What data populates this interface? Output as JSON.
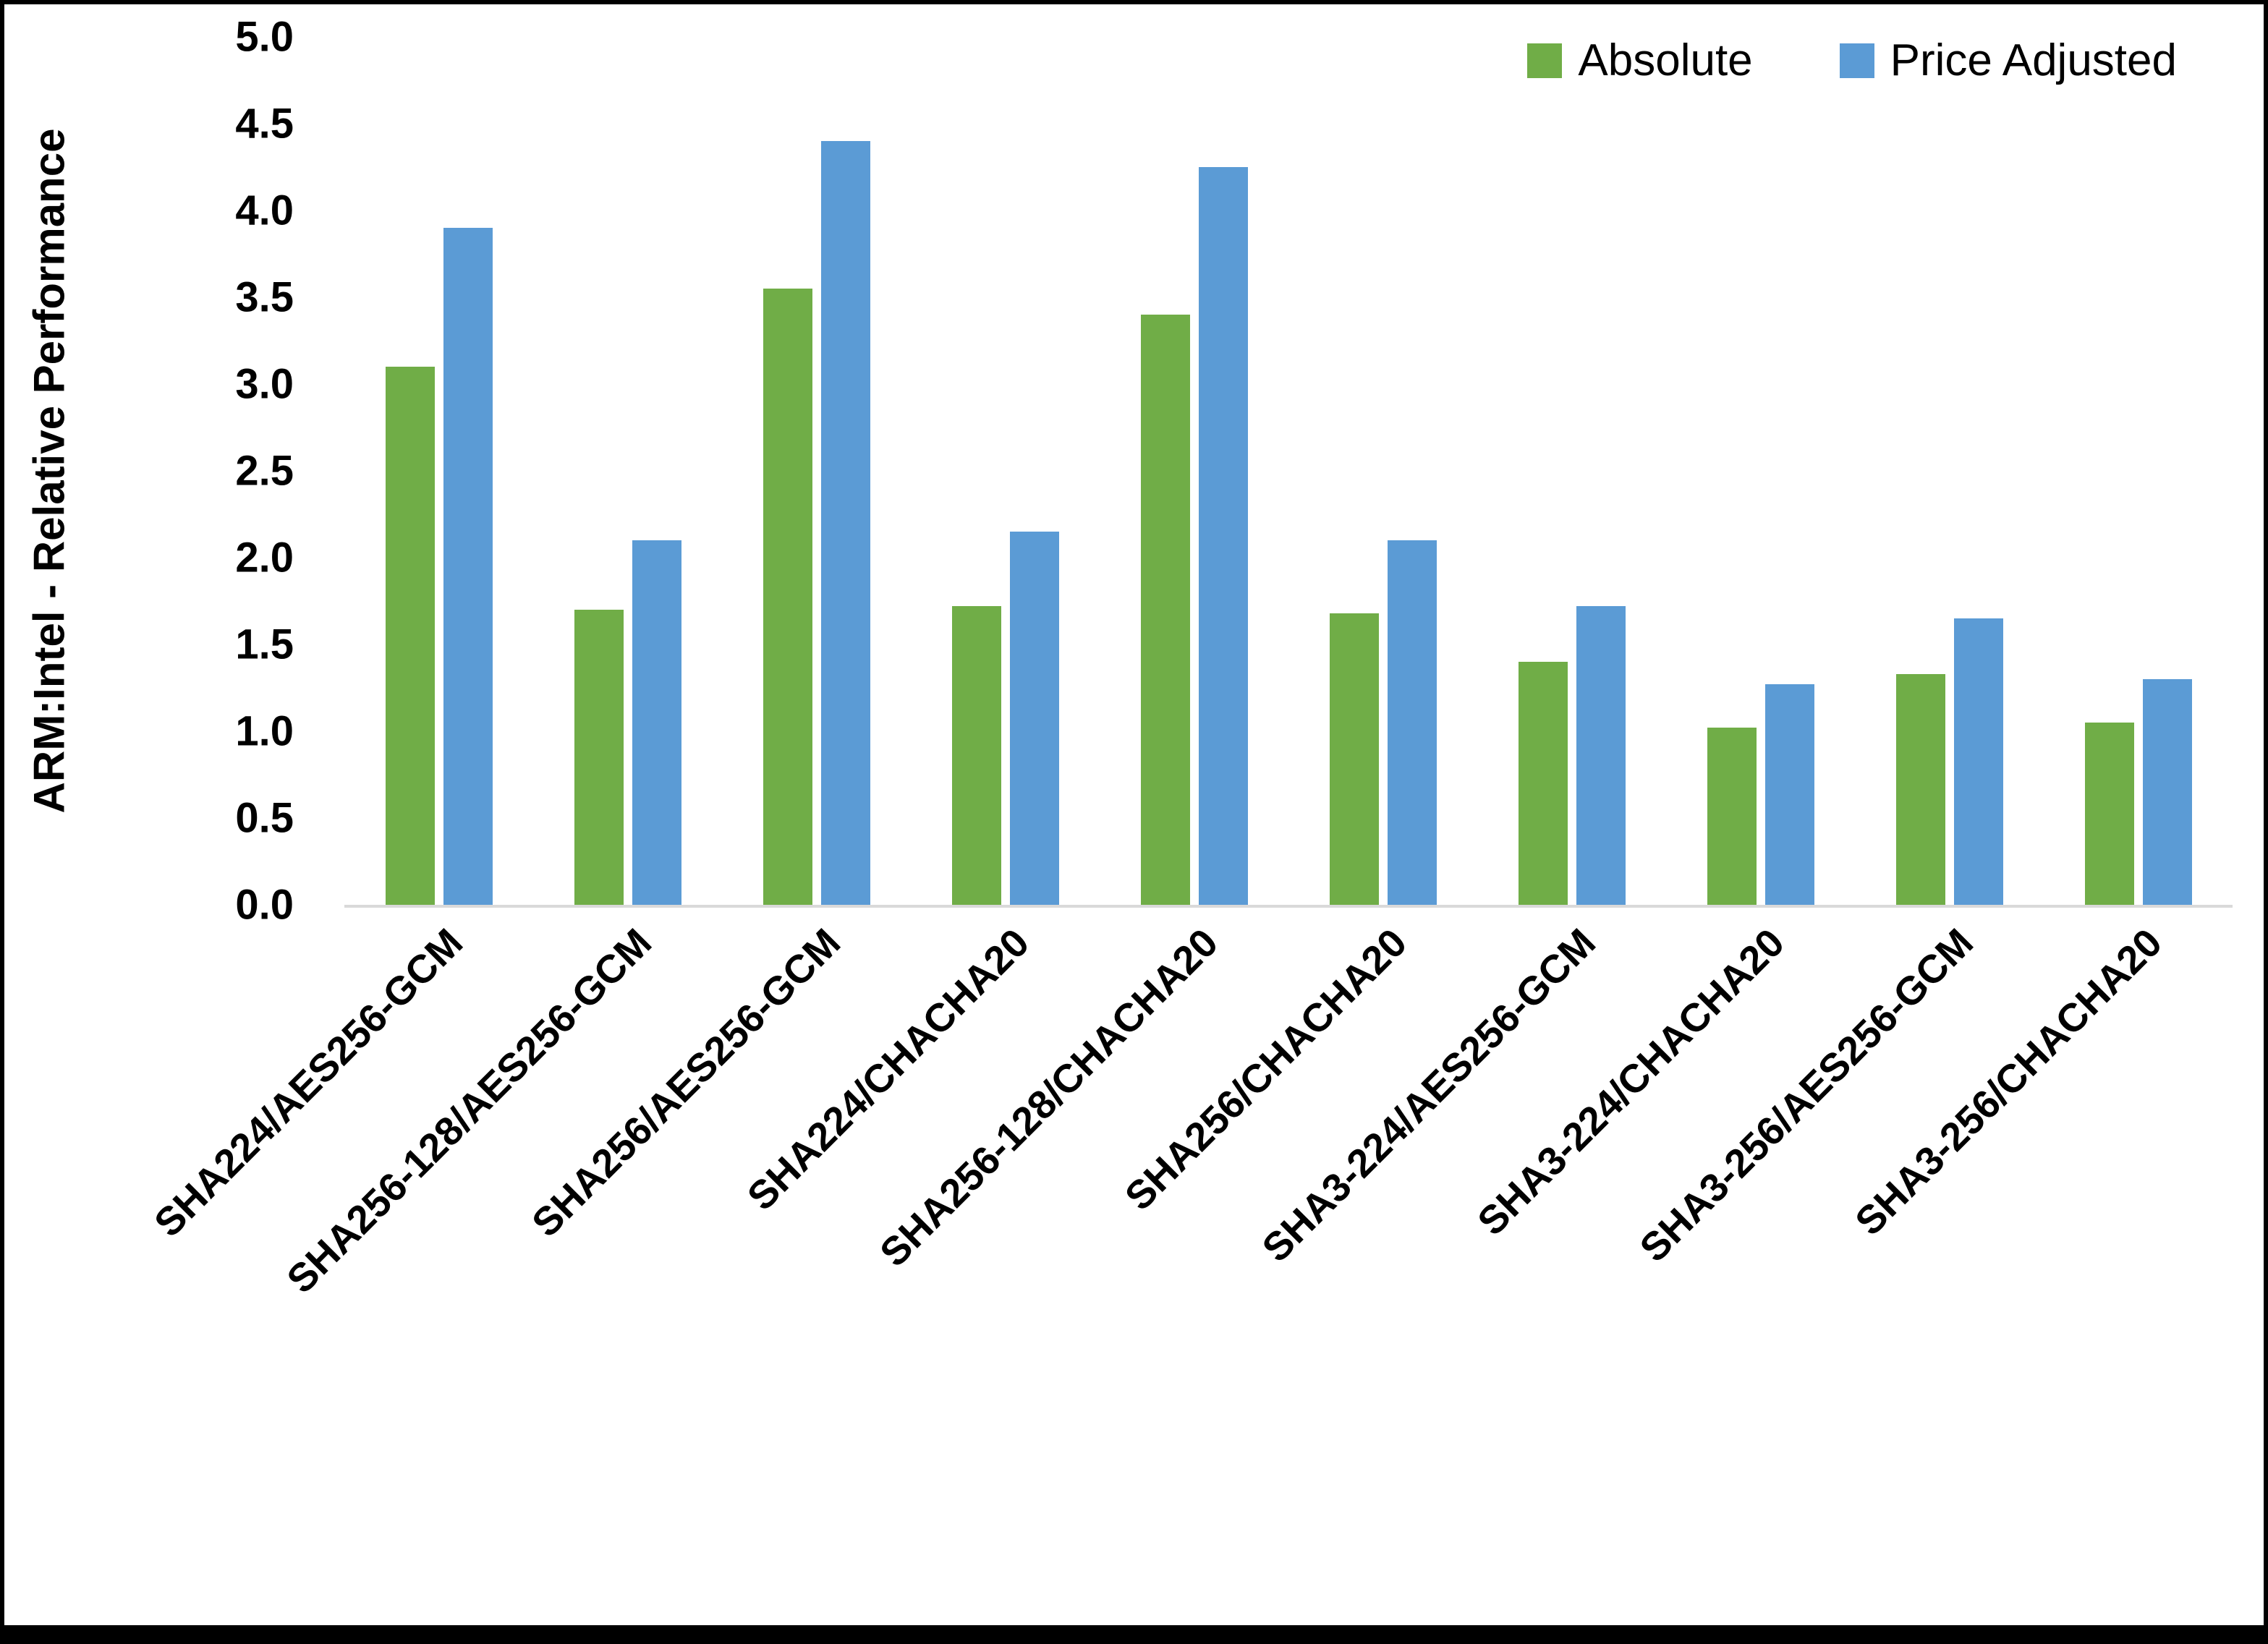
{
  "chart_data": {
    "type": "bar",
    "title": "",
    "xlabel": "",
    "ylabel": "ARM:Intel - Relative Performance",
    "ylim": [
      0,
      5
    ],
    "ytick_step": 0.5,
    "yticks": [
      "0.0",
      "0.5",
      "1.0",
      "1.5",
      "2.0",
      "2.5",
      "3.0",
      "3.5",
      "4.0",
      "4.5",
      "5.0"
    ],
    "grid": false,
    "legend_position": "top-right",
    "categories": [
      "SHA224/AES256-GCM",
      "SHA256-128/AES256-GCM",
      "SHA256/AES256-GCM",
      "SHA224/CHACHA20",
      "SHA256-128/CHACHA20",
      "SHA256/CHACHA20",
      "SHA3-224/AES256-GCM",
      "SHA3-224/CHACHA20",
      "SHA3-256/AES256-GCM",
      "SHA3-256/CHACHA20"
    ],
    "series": [
      {
        "name": "Absolute",
        "color": "#70AD47",
        "values": [
          3.1,
          1.7,
          3.55,
          1.72,
          3.4,
          1.68,
          1.4,
          1.02,
          1.33,
          1.05
        ]
      },
      {
        "name": "Price Adjusted",
        "color": "#5B9BD5",
        "values": [
          3.9,
          2.1,
          4.4,
          2.15,
          4.25,
          2.1,
          1.72,
          1.27,
          1.65,
          1.3
        ]
      }
    ],
    "axis_line_color": "#d9d9d9"
  }
}
